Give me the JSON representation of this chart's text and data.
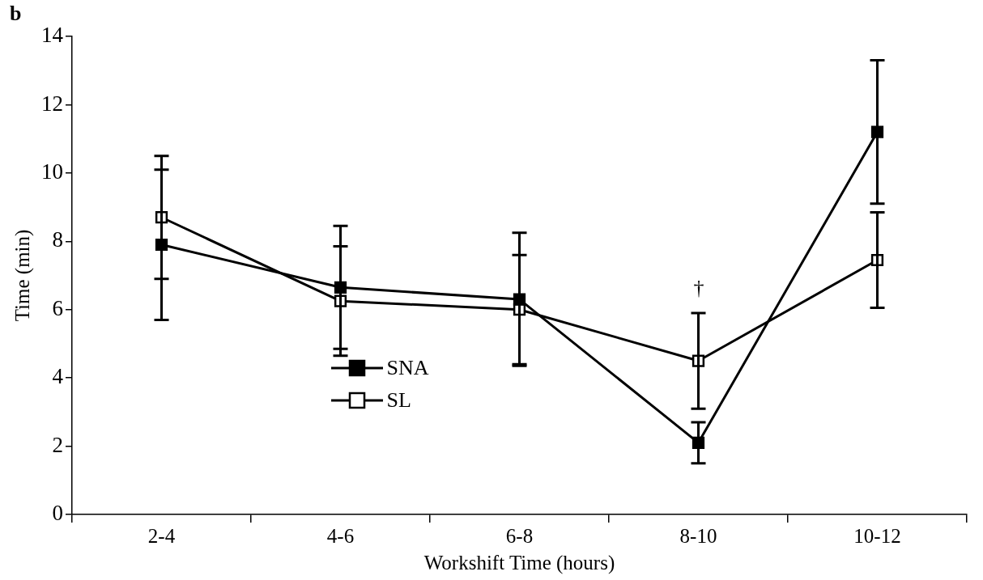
{
  "chart_data": {
    "type": "line",
    "xlabel": "Workshift Time (hours)",
    "ylabel": "Time (min)",
    "categories": [
      "2-4",
      "4-6",
      "6-8",
      "8-10",
      "10-12"
    ],
    "series": [
      {
        "name": "SNA",
        "color": "#000000",
        "values": [
          7.9,
          6.65,
          6.3,
          2.1,
          11.2
        ],
        "errors": [
          2.2,
          1.8,
          1.95,
          0.6,
          2.1
        ]
      },
      {
        "name": "SL",
        "color": "#ffffff",
        "values": [
          8.7,
          6.25,
          6.0,
          4.5,
          7.45
        ],
        "errors": [
          1.8,
          1.6,
          1.6,
          1.4,
          1.4
        ]
      }
    ],
    "ylim": [
      0,
      14
    ],
    "yticks": [
      0,
      2,
      4,
      6,
      8,
      10,
      12,
      14
    ],
    "grid": false,
    "legend": "bottom left",
    "marker": "square",
    "line_style": "solid",
    "annotations": [
      "b",
      "†"
    ]
  }
}
